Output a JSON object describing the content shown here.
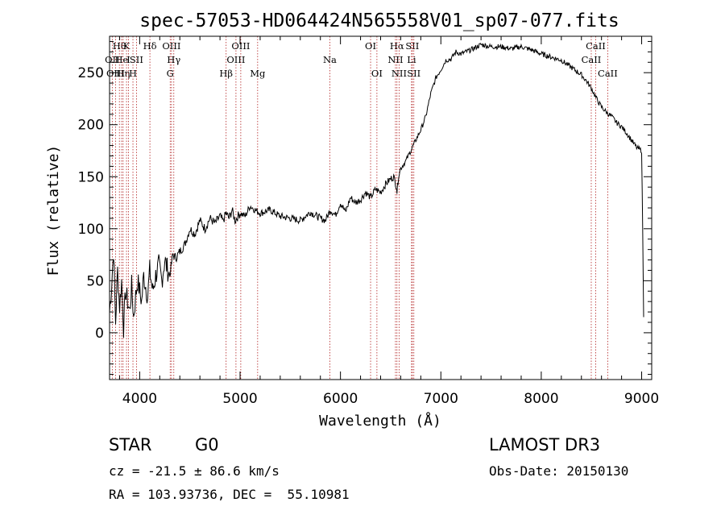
{
  "chart_data": {
    "type": "line",
    "title": "spec-57053-HD064424N565558V01_sp07-077.fits",
    "xlabel": "Wavelength (Å)",
    "ylabel": "Flux (relative)",
    "xlim": [
      3700,
      9100
    ],
    "ylim": [
      -45,
      285
    ],
    "x_ticks": [
      4000,
      5000,
      6000,
      7000,
      8000,
      9000
    ],
    "y_ticks": [
      0,
      50,
      100,
      150,
      200,
      250
    ],
    "series": [
      {
        "name": "flux",
        "x": [
          3700,
          3720,
          3740,
          3760,
          3780,
          3800,
          3820,
          3840,
          3860,
          3880,
          3900,
          3920,
          3940,
          3960,
          3980,
          4000,
          4020,
          4040,
          4060,
          4080,
          4100,
          4130,
          4160,
          4190,
          4220,
          4250,
          4280,
          4300,
          4330,
          4360,
          4400,
          4450,
          4500,
          4550,
          4600,
          4650,
          4700,
          4750,
          4800,
          4830,
          4860,
          4890,
          4920,
          4950,
          5000,
          5050,
          5100,
          5150,
          5200,
          5300,
          5400,
          5500,
          5600,
          5700,
          5800,
          5850,
          5900,
          5950,
          6000,
          6050,
          6100,
          6150,
          6200,
          6250,
          6300,
          6350,
          6400,
          6450,
          6500,
          6530,
          6560,
          6563,
          6580,
          6600,
          6650,
          6700,
          6750,
          6800,
          6850,
          6900,
          6950,
          7000,
          7050,
          7100,
          7150,
          7200,
          7300,
          7400,
          7500,
          7600,
          7700,
          7800,
          7900,
          8000,
          8100,
          8200,
          8300,
          8400,
          8450,
          8500,
          8550,
          8600,
          8650,
          8700,
          8750,
          8800,
          8850,
          8900,
          8950,
          9000,
          9010,
          9020
        ],
        "y": [
          20,
          45,
          80,
          10,
          60,
          25,
          50,
          5,
          40,
          30,
          20,
          45,
          15,
          35,
          50,
          40,
          30,
          55,
          45,
          35,
          60,
          40,
          55,
          65,
          50,
          70,
          60,
          55,
          75,
          72,
          78,
          85,
          100,
          95,
          108,
          100,
          110,
          105,
          112,
          107,
          115,
          110,
          118,
          108,
          115,
          112,
          122,
          118,
          115,
          118,
          112,
          110,
          108,
          116,
          110,
          108,
          118,
          113,
          125,
          116,
          130,
          125,
          128,
          135,
          130,
          138,
          135,
          143,
          148,
          150,
          140,
          135,
          152,
          158,
          165,
          175,
          185,
          195,
          208,
          230,
          245,
          253,
          262,
          263,
          270,
          268,
          272,
          277,
          275,
          275,
          273,
          275,
          272,
          268,
          265,
          262,
          255,
          248,
          242,
          235,
          225,
          217,
          212,
          208,
          202,
          198,
          192,
          185,
          178,
          175,
          100,
          15
        ]
      }
    ],
    "spectral_lines": [
      {
        "label": "Hθ",
        "wavelength": 3798,
        "row": 1
      },
      {
        "label": "OII",
        "wavelength": 3727,
        "row": 2
      },
      {
        "label": "OIII",
        "wavelength": 3760,
        "row": 3
      },
      {
        "label": "He",
        "wavelength": 3820,
        "row": 2
      },
      {
        "label": "Hη",
        "wavelength": 3835,
        "row": 3
      },
      {
        "label": "K",
        "wavelength": 3869,
        "row": 1
      },
      {
        "label": "I",
        "wavelength": 3889,
        "row": 2
      },
      {
        "label": "H",
        "wavelength": 3933,
        "row": 3
      },
      {
        "label": "SII",
        "wavelength": 3968,
        "row": 2
      },
      {
        "label": "Hδ",
        "wavelength": 4102,
        "row": 1
      },
      {
        "label": "OIII",
        "wavelength": 4317,
        "row": 1
      },
      {
        "label": "Hγ",
        "wavelength": 4340,
        "row": 2
      },
      {
        "label": "G",
        "wavelength": 4304,
        "row": 3
      },
      {
        "label": "Hβ",
        "wavelength": 4861,
        "row": 3
      },
      {
        "label": "OIII",
        "wavelength": 4959,
        "row": 2
      },
      {
        "label": "OIII",
        "wavelength": 5007,
        "row": 1
      },
      {
        "label": "Mg",
        "wavelength": 5175,
        "row": 3
      },
      {
        "label": "Na",
        "wavelength": 5894,
        "row": 2
      },
      {
        "label": "OI",
        "wavelength": 6300,
        "row": 1
      },
      {
        "label": "OI",
        "wavelength": 6363,
        "row": 3
      },
      {
        "label": "Hα",
        "wavelength": 6563,
        "row": 1
      },
      {
        "label": "NII",
        "wavelength": 6548,
        "row": 2
      },
      {
        "label": "NII",
        "wavelength": 6584,
        "row": 3
      },
      {
        "label": "SII",
        "wavelength": 6716,
        "row": 1
      },
      {
        "label": "Li",
        "wavelength": 6708,
        "row": 2
      },
      {
        "label": "SII",
        "wavelength": 6731,
        "row": 3
      },
      {
        "label": "CaII",
        "wavelength": 8542,
        "row": 1
      },
      {
        "label": "CaII",
        "wavelength": 8498,
        "row": 2
      },
      {
        "label": "CaII",
        "wavelength": 8662,
        "row": 3
      }
    ]
  },
  "info": {
    "object_class": "STAR",
    "subclass": "G0",
    "survey": "LAMOST DR3",
    "redshift_text": "cz = -21.5 ± 86.6 km/s",
    "obs_date_text": "Obs-Date: 20150130",
    "coords_text": "RA = 103.93736, DEC =  55.10981"
  }
}
